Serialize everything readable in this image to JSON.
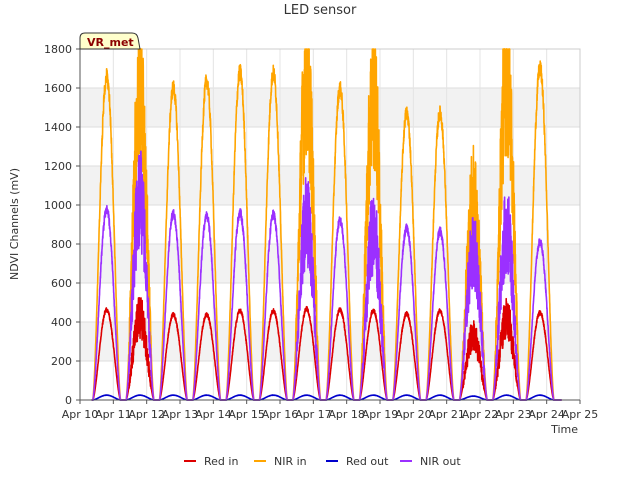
{
  "chart_data": {
    "type": "line",
    "title": "LED sensor",
    "xlabel": "Time",
    "ylabel": "NDVI Channels (mV)",
    "badge": "VR_met",
    "ylim": [
      0,
      1800
    ],
    "yticks": [
      0,
      200,
      400,
      600,
      800,
      1000,
      1200,
      1400,
      1600,
      1800
    ],
    "xlim": [
      10,
      25
    ],
    "xticks": [
      {
        "value": 10,
        "label": "Apr 10"
      },
      {
        "value": 11,
        "label": "Apr 11"
      },
      {
        "value": 12,
        "label": "Apr 12"
      },
      {
        "value": 13,
        "label": "Apr 13"
      },
      {
        "value": 14,
        "label": "Apr 14"
      },
      {
        "value": 15,
        "label": "Apr 15"
      },
      {
        "value": 16,
        "label": "Apr 16"
      },
      {
        "value": 17,
        "label": "Apr 17"
      },
      {
        "value": 18,
        "label": "Apr 18"
      },
      {
        "value": 19,
        "label": "Apr 19"
      },
      {
        "value": 20,
        "label": "Apr 20"
      },
      {
        "value": 21,
        "label": "Apr 21"
      },
      {
        "value": 22,
        "label": "Apr 22"
      },
      {
        "value": 23,
        "label": "Apr 23"
      },
      {
        "value": 24,
        "label": "Apr 24"
      },
      {
        "value": 25,
        "label": "Apr 25"
      }
    ],
    "days": [
      10.8,
      11.8,
      12.8,
      13.8,
      14.8,
      15.8,
      16.8,
      17.8,
      18.8,
      19.8,
      20.8,
      21.8,
      22.8,
      23.8
    ],
    "series": [
      {
        "name": "Red in",
        "color": "#dd0000",
        "data_start": 10.35,
        "data_end": 24.45,
        "peaks": [
          465,
          440,
          440,
          440,
          460,
          460,
          470,
          465,
          460,
          445,
          460,
          340,
          430,
          450
        ],
        "noisy_days": [
          1,
          11,
          12
        ]
      },
      {
        "name": "NIR in",
        "color": "#ffa500",
        "data_start": 10.35,
        "data_end": 24.45,
        "peaks": [
          1670,
          1620,
          1610,
          1645,
          1690,
          1685,
          1710,
          1605,
          1620,
          1480,
          1480,
          1070,
          1730,
          1710
        ],
        "noisy_days": [
          1,
          6,
          8,
          11,
          12
        ]
      },
      {
        "name": "Red out",
        "color": "#0000cc",
        "data_start": 10.35,
        "data_end": 24.45,
        "peaks": [
          25,
          25,
          25,
          25,
          25,
          25,
          25,
          25,
          25,
          25,
          25,
          20,
          25,
          25
        ],
        "noisy_days": []
      },
      {
        "name": "NIR out",
        "color": "#9b30ff",
        "data_start": 10.35,
        "data_end": 24.45,
        "peaks": [
          980,
          1060,
          960,
          950,
          965,
          955,
          950,
          925,
          890,
          885,
          870,
          790,
          900,
          815
        ],
        "noisy_days": [
          1,
          6,
          8,
          11,
          12
        ]
      }
    ],
    "legend_position": "bottom-center",
    "grid": true
  }
}
